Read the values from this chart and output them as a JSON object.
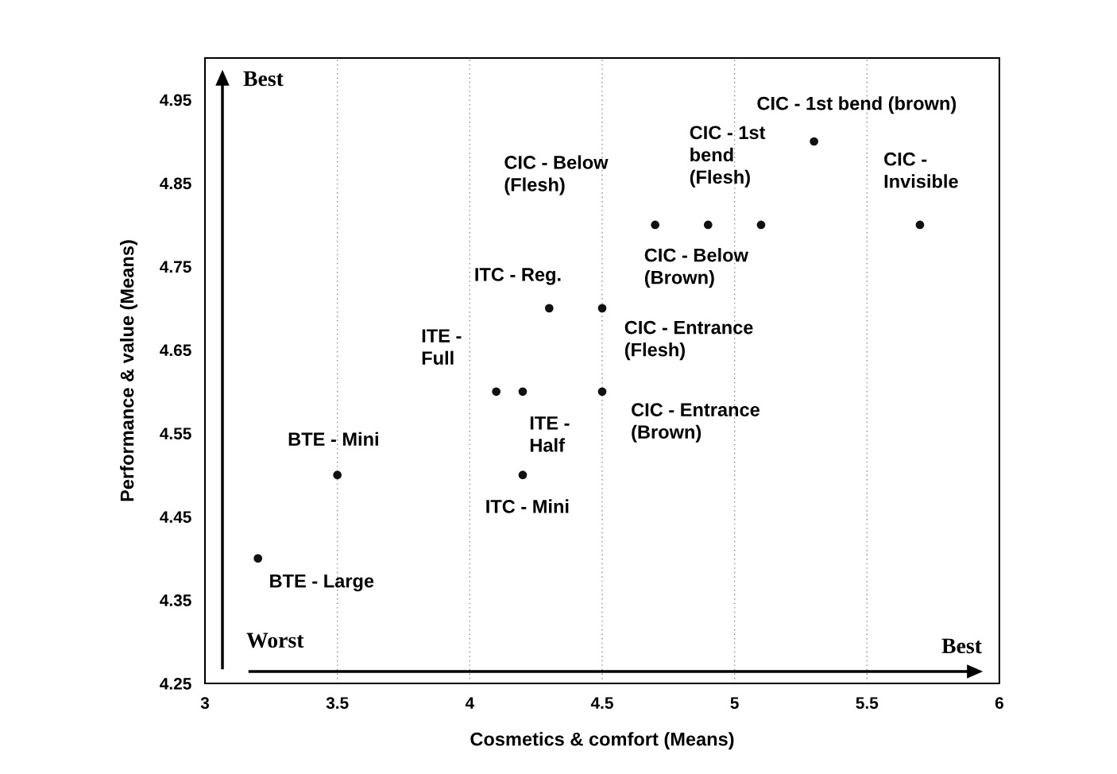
{
  "chart_data": {
    "type": "scatter",
    "xlabel": "Cosmetics & comfort (Means)",
    "ylabel": "Performance & value (Means)",
    "x": [
      3.2,
      3.5,
      4.1,
      4.2,
      4.2,
      4.3,
      4.5,
      4.5,
      4.7,
      4.9,
      5.1,
      5.3,
      5.7
    ],
    "values": [
      4.4,
      4.5,
      4.6,
      4.6,
      4.5,
      4.7,
      4.7,
      4.6,
      4.8,
      4.8,
      4.8,
      4.9,
      4.8
    ],
    "color": "#111111",
    "marker": "circle",
    "xlim": [
      3,
      6
    ],
    "xticks": [
      3,
      3.5,
      4,
      4.5,
      5,
      5.5,
      6
    ],
    "ylim": [
      4.25,
      5.0
    ],
    "yticks": [
      4.25,
      4.35,
      4.45,
      4.55,
      4.65,
      4.75,
      4.85,
      4.95
    ],
    "grid": "x",
    "annotations": [
      {
        "text": "BTE - Large",
        "x": 3.2,
        "y": 4.4
      },
      {
        "text": "BTE - Mini",
        "x": 3.5,
        "y": 4.5
      },
      {
        "text": "ITE -\nFull",
        "x": 4.1,
        "y": 4.6
      },
      {
        "text": "ITE -\nHalf",
        "x": 4.2,
        "y": 4.6
      },
      {
        "text": "ITC - Mini",
        "x": 4.2,
        "y": 4.5
      },
      {
        "text": "ITC - Reg.",
        "x": 4.3,
        "y": 4.7
      },
      {
        "text": "CIC - Entrance\n(Flesh)",
        "x": 4.5,
        "y": 4.7
      },
      {
        "text": "CIC - Entrance\n(Brown)",
        "x": 4.5,
        "y": 4.6
      },
      {
        "text": "CIC - Below\n(Flesh)",
        "x": 4.7,
        "y": 4.8
      },
      {
        "text": "CIC - Below\n(Brown)",
        "x": 4.9,
        "y": 4.8
      },
      {
        "text": "CIC - 1st\nbend\n(Flesh)",
        "x": 5.1,
        "y": 4.8
      },
      {
        "text": "CIC - 1st bend (brown)",
        "x": 5.3,
        "y": 4.9
      },
      {
        "text": "CIC -\nInvisible",
        "x": 5.7,
        "y": 4.8
      },
      "Best",
      "Worst",
      "Best"
    ]
  }
}
